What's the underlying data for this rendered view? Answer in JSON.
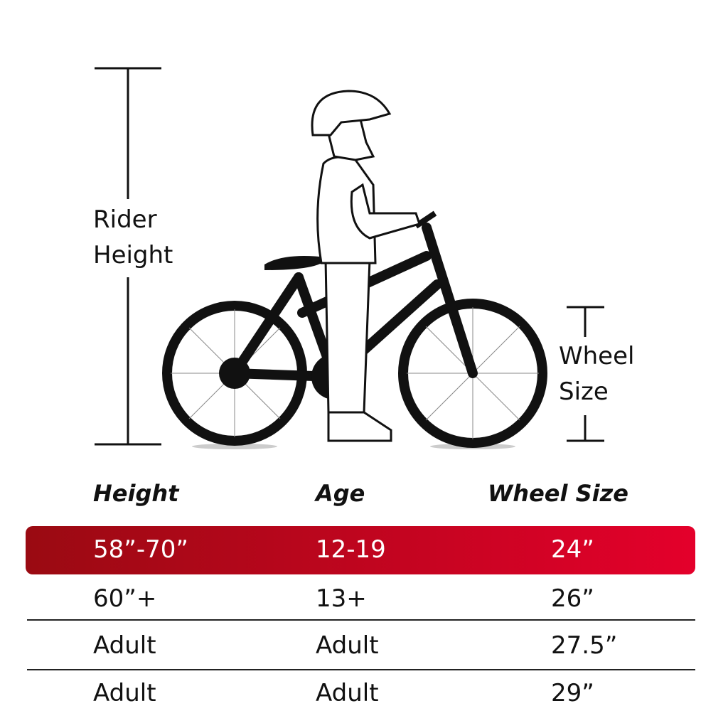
{
  "labels": {
    "rider_height": "Rider Height",
    "wheel_size": "Wheel Size"
  },
  "table": {
    "headers": [
      "Height",
      "Age",
      "Wheel Size"
    ],
    "rows": [
      [
        "58”-70”",
        "12-19",
        "24”"
      ],
      [
        "60”+",
        "13+",
        "26”"
      ],
      [
        "Adult",
        "Adult",
        "27.5”"
      ],
      [
        "Adult",
        "Adult",
        "29”"
      ]
    ],
    "highlighted_row": 0
  }
}
